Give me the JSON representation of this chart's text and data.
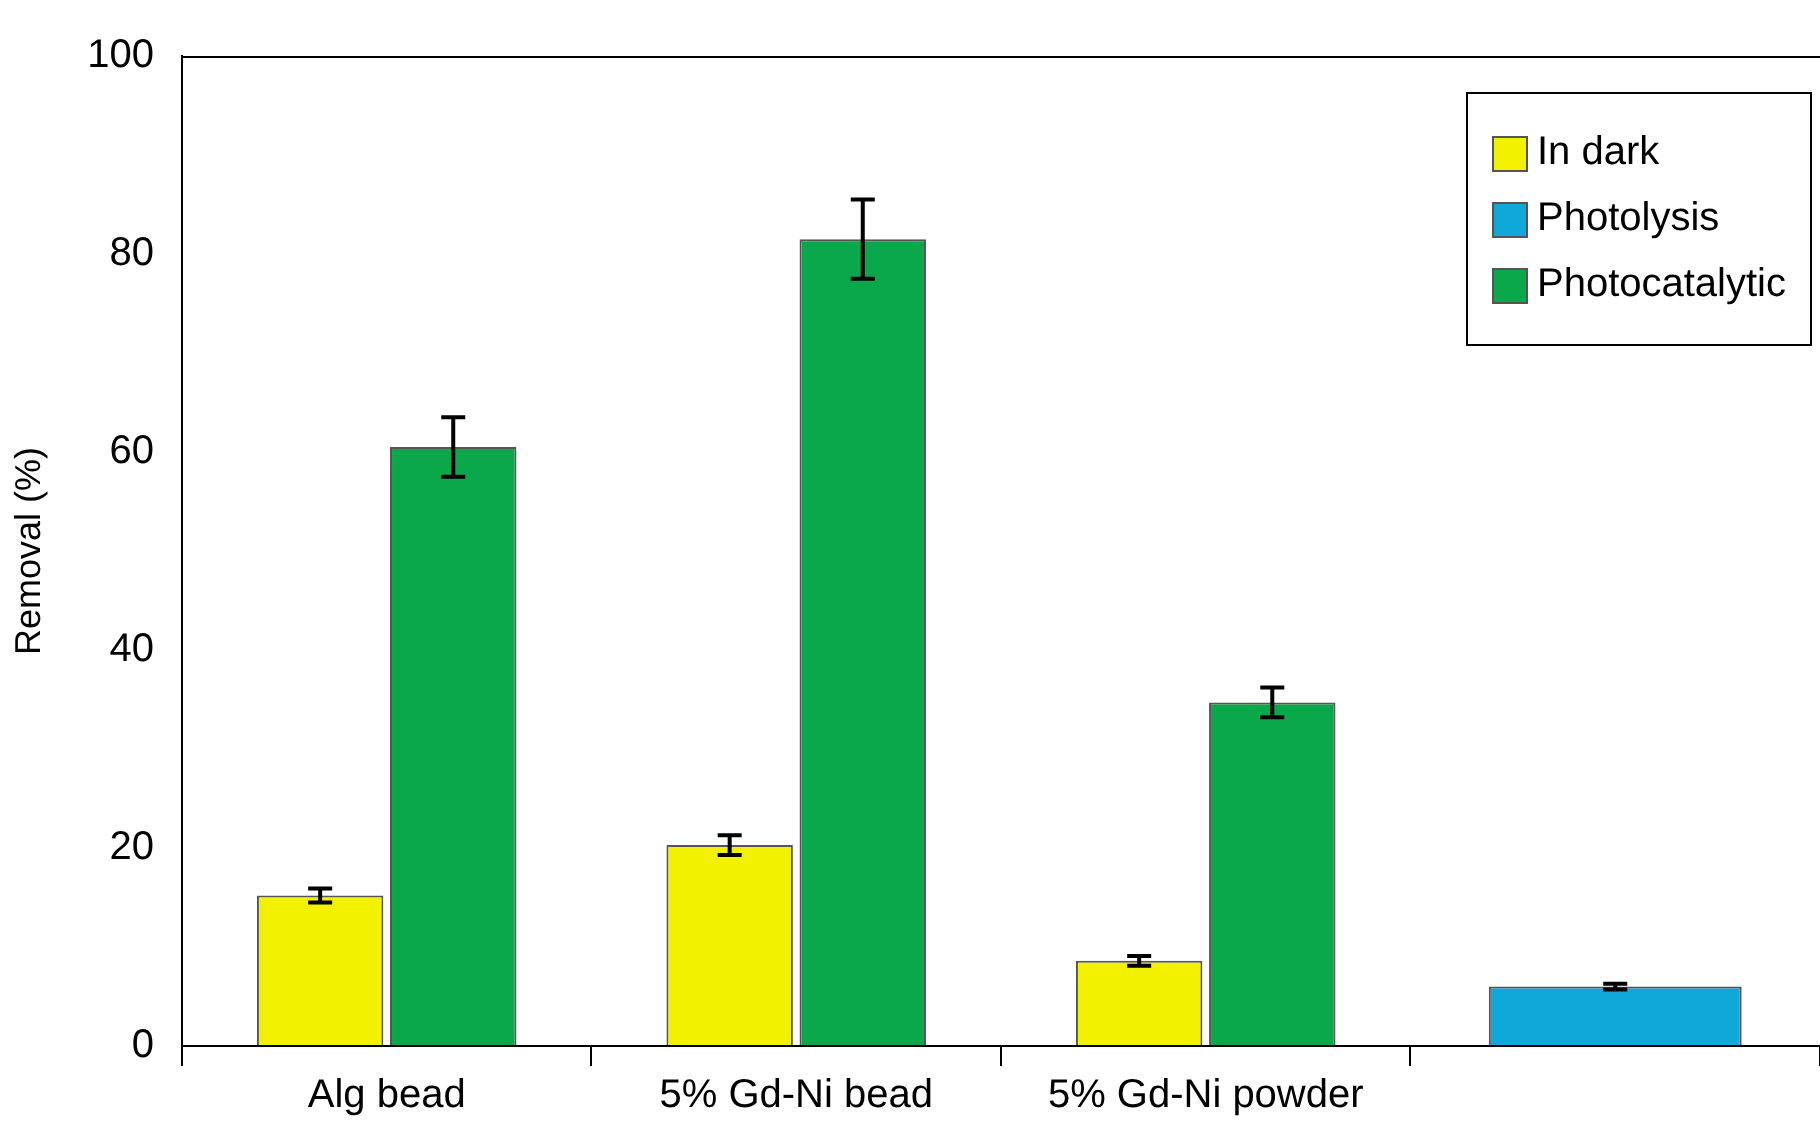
{
  "chart_data": {
    "type": "bar",
    "ylabel": "Removal (%)",
    "categories": [
      "Alg bead",
      "5% Gd-Ni bead",
      "5% Gd-Ni powder",
      null
    ],
    "series": [
      {
        "name": "In dark",
        "color": "#f2f200",
        "values": [
          15.2,
          20.3,
          8.6,
          null
        ],
        "errors": [
          0.7,
          1,
          0.5,
          null
        ]
      },
      {
        "name": "Photolysis",
        "color": "#0fa8d8",
        "values": [
          null,
          null,
          null,
          6
        ],
        "errors": [
          null,
          null,
          null,
          0.3
        ]
      },
      {
        "name": "Photocatalytic",
        "color": "#0aa84a",
        "values": [
          60.5,
          81.5,
          34.7,
          null
        ],
        "errors": [
          3,
          4,
          1.5,
          null
        ]
      }
    ],
    "ylim": [
      0,
      100
    ],
    "yticks": [
      0,
      20,
      40,
      60,
      80,
      100
    ],
    "grid": false,
    "legend": "top right"
  }
}
